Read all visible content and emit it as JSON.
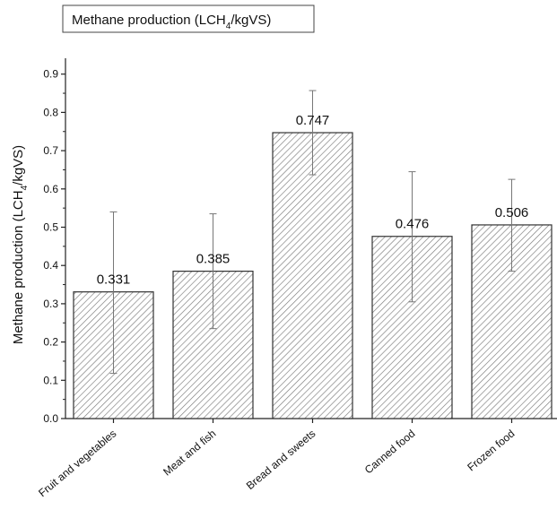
{
  "chart_data": {
    "type": "bar",
    "title_box": {
      "label_pre": "Methane production (LCH",
      "label_sub": "4",
      "label_post": "/kgVS)"
    },
    "ylabel_pre": "Methane production (LCH",
    "ylabel_sub": "4",
    "ylabel_post": "/kgVS)",
    "xlabel": "",
    "ylim": [
      0,
      0.95
    ],
    "yticks": [
      "0.0",
      "0.1",
      "0.2",
      "0.3",
      "0.4",
      "0.5",
      "0.6",
      "0.7",
      "0.8",
      "0.9"
    ],
    "categories": [
      "Fruit and vegetables",
      "Meat and fish",
      "Bread and sweets",
      "Canned food",
      "Frozen food"
    ],
    "values": [
      0.331,
      0.385,
      0.747,
      0.476,
      0.506
    ],
    "value_labels": [
      "0.331",
      "0.385",
      "0.747",
      "0.476",
      "0.506"
    ],
    "error_low": [
      0.118,
      0.235,
      0.637,
      0.305,
      0.385
    ],
    "error_high": [
      0.54,
      0.535,
      0.857,
      0.645,
      0.625
    ],
    "bar_fill": "hatched gray",
    "grid": false
  }
}
